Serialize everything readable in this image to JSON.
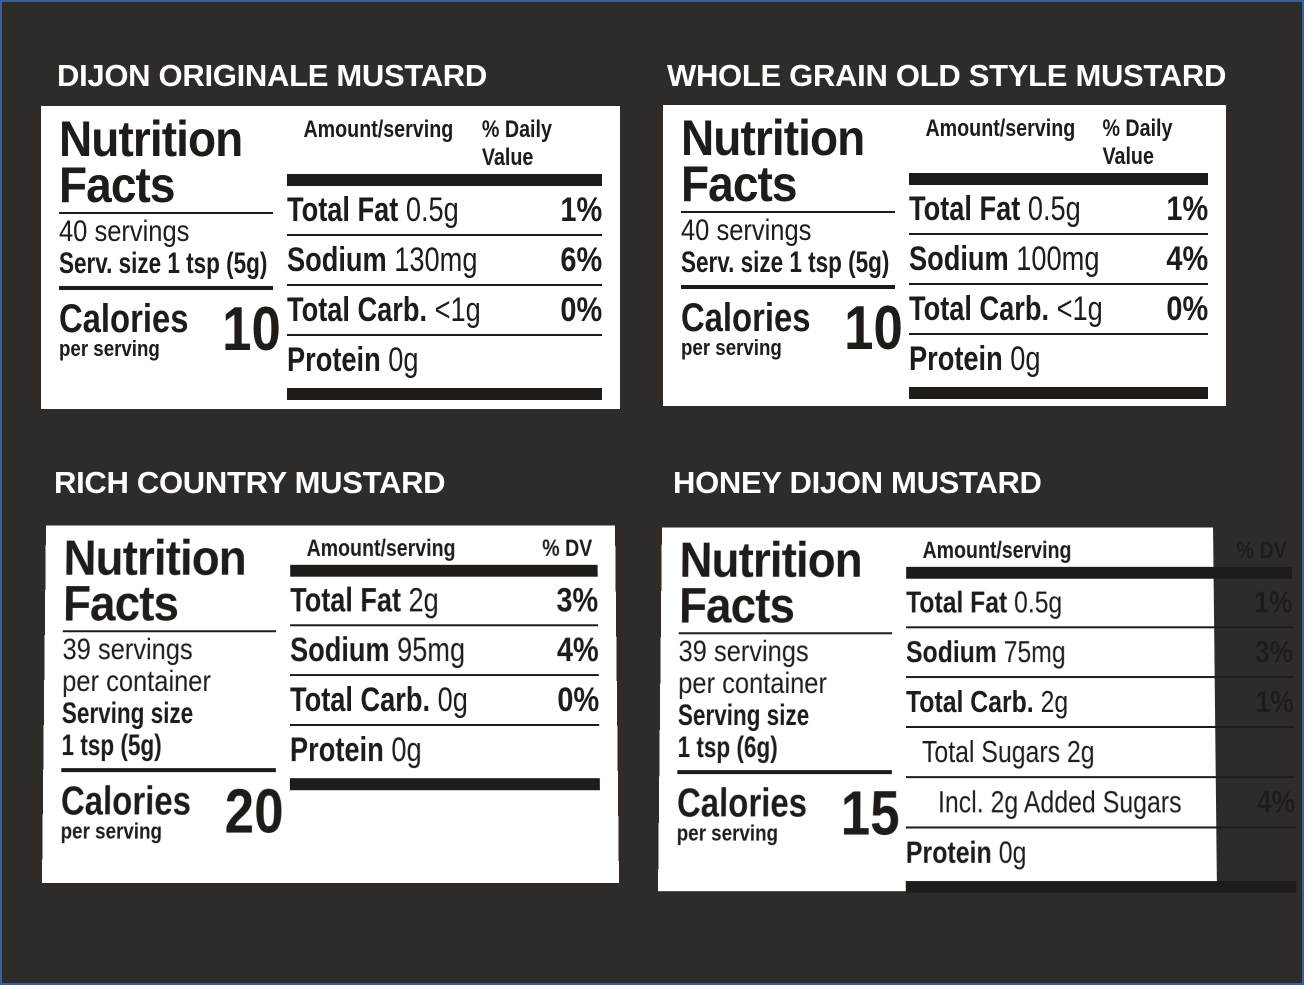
{
  "colors": {
    "background": "#2e2b28",
    "label": "#ffffff",
    "ink": "#1e1b19",
    "title": "#ffffff"
  },
  "panels": [
    {
      "title": "DIJON ORIGINALE MUSTARD",
      "heading": [
        "Nutrition",
        "Facts"
      ],
      "servings": [
        "40 servings"
      ],
      "serving_size": [
        "Serv. size 1 tsp (5g)"
      ],
      "calories_label": "Calories",
      "per_serving": "per serving",
      "calories": "10",
      "amount_header": "Amount/serving",
      "dv_header": "% Daily Value",
      "rows": [
        {
          "name": "Total Fat",
          "value": "0.5g",
          "dv": "1%"
        },
        {
          "name": "Sodium",
          "value": "130mg",
          "dv": "6%"
        },
        {
          "name": "Total Carb.",
          "value": "<1g",
          "dv": "0%"
        },
        {
          "name": "Protein",
          "value": "0g",
          "dv": ""
        }
      ]
    },
    {
      "title": "WHOLE GRAIN OLD STYLE MUSTARD",
      "heading": [
        "Nutrition",
        "Facts"
      ],
      "servings": [
        "40 servings"
      ],
      "serving_size": [
        "Serv. size 1 tsp (5g)"
      ],
      "calories_label": "Calories",
      "per_serving": "per serving",
      "calories": "10",
      "amount_header": "Amount/serving",
      "dv_header": "% Daily Value",
      "rows": [
        {
          "name": "Total Fat",
          "value": "0.5g",
          "dv": "1%"
        },
        {
          "name": "Sodium",
          "value": "100mg",
          "dv": "4%"
        },
        {
          "name": "Total Carb.",
          "value": "<1g",
          "dv": "0%"
        },
        {
          "name": "Protein",
          "value": "0g",
          "dv": ""
        }
      ]
    },
    {
      "title": "RICH COUNTRY MUSTARD",
      "heading": [
        "Nutrition",
        "Facts"
      ],
      "servings": [
        "39 servings",
        "per container"
      ],
      "serving_size": [
        "Serving size",
        "1 tsp (5g)"
      ],
      "calories_label": "Calories",
      "per_serving": "per serving",
      "calories": "20",
      "amount_header": "Amount/serving",
      "dv_header": "% DV",
      "rows": [
        {
          "name": "Total Fat",
          "value": "2g",
          "dv": "3%"
        },
        {
          "name": "Sodium",
          "value": "95mg",
          "dv": "4%"
        },
        {
          "name": "Total Carb.",
          "value": "0g",
          "dv": "0%"
        },
        {
          "name": "Protein",
          "value": "0g",
          "dv": ""
        }
      ]
    },
    {
      "title": "HONEY DIJON MUSTARD",
      "heading": [
        "Nutrition",
        "Facts"
      ],
      "servings": [
        "39 servings",
        "per container"
      ],
      "serving_size": [
        "Serving size",
        "1 tsp (6g)"
      ],
      "calories_label": "Calories",
      "per_serving": "per serving",
      "calories": "15",
      "amount_header": "Amount/serving",
      "dv_header": "% DV",
      "rows": [
        {
          "name": "Total Fat",
          "value": "0.5g",
          "dv": "1%"
        },
        {
          "name": "Sodium",
          "value": "75mg",
          "dv": "3%"
        },
        {
          "name": "Total Carb.",
          "value": "2g",
          "dv": "1%"
        },
        {
          "name": "",
          "value": "Total Sugars 2g",
          "dv": "",
          "indent": 1
        },
        {
          "name": "",
          "value": "Incl. 2g Added Sugars",
          "dv": "4%",
          "indent": 2
        },
        {
          "name": "Protein",
          "value": "0g",
          "dv": ""
        }
      ]
    }
  ]
}
